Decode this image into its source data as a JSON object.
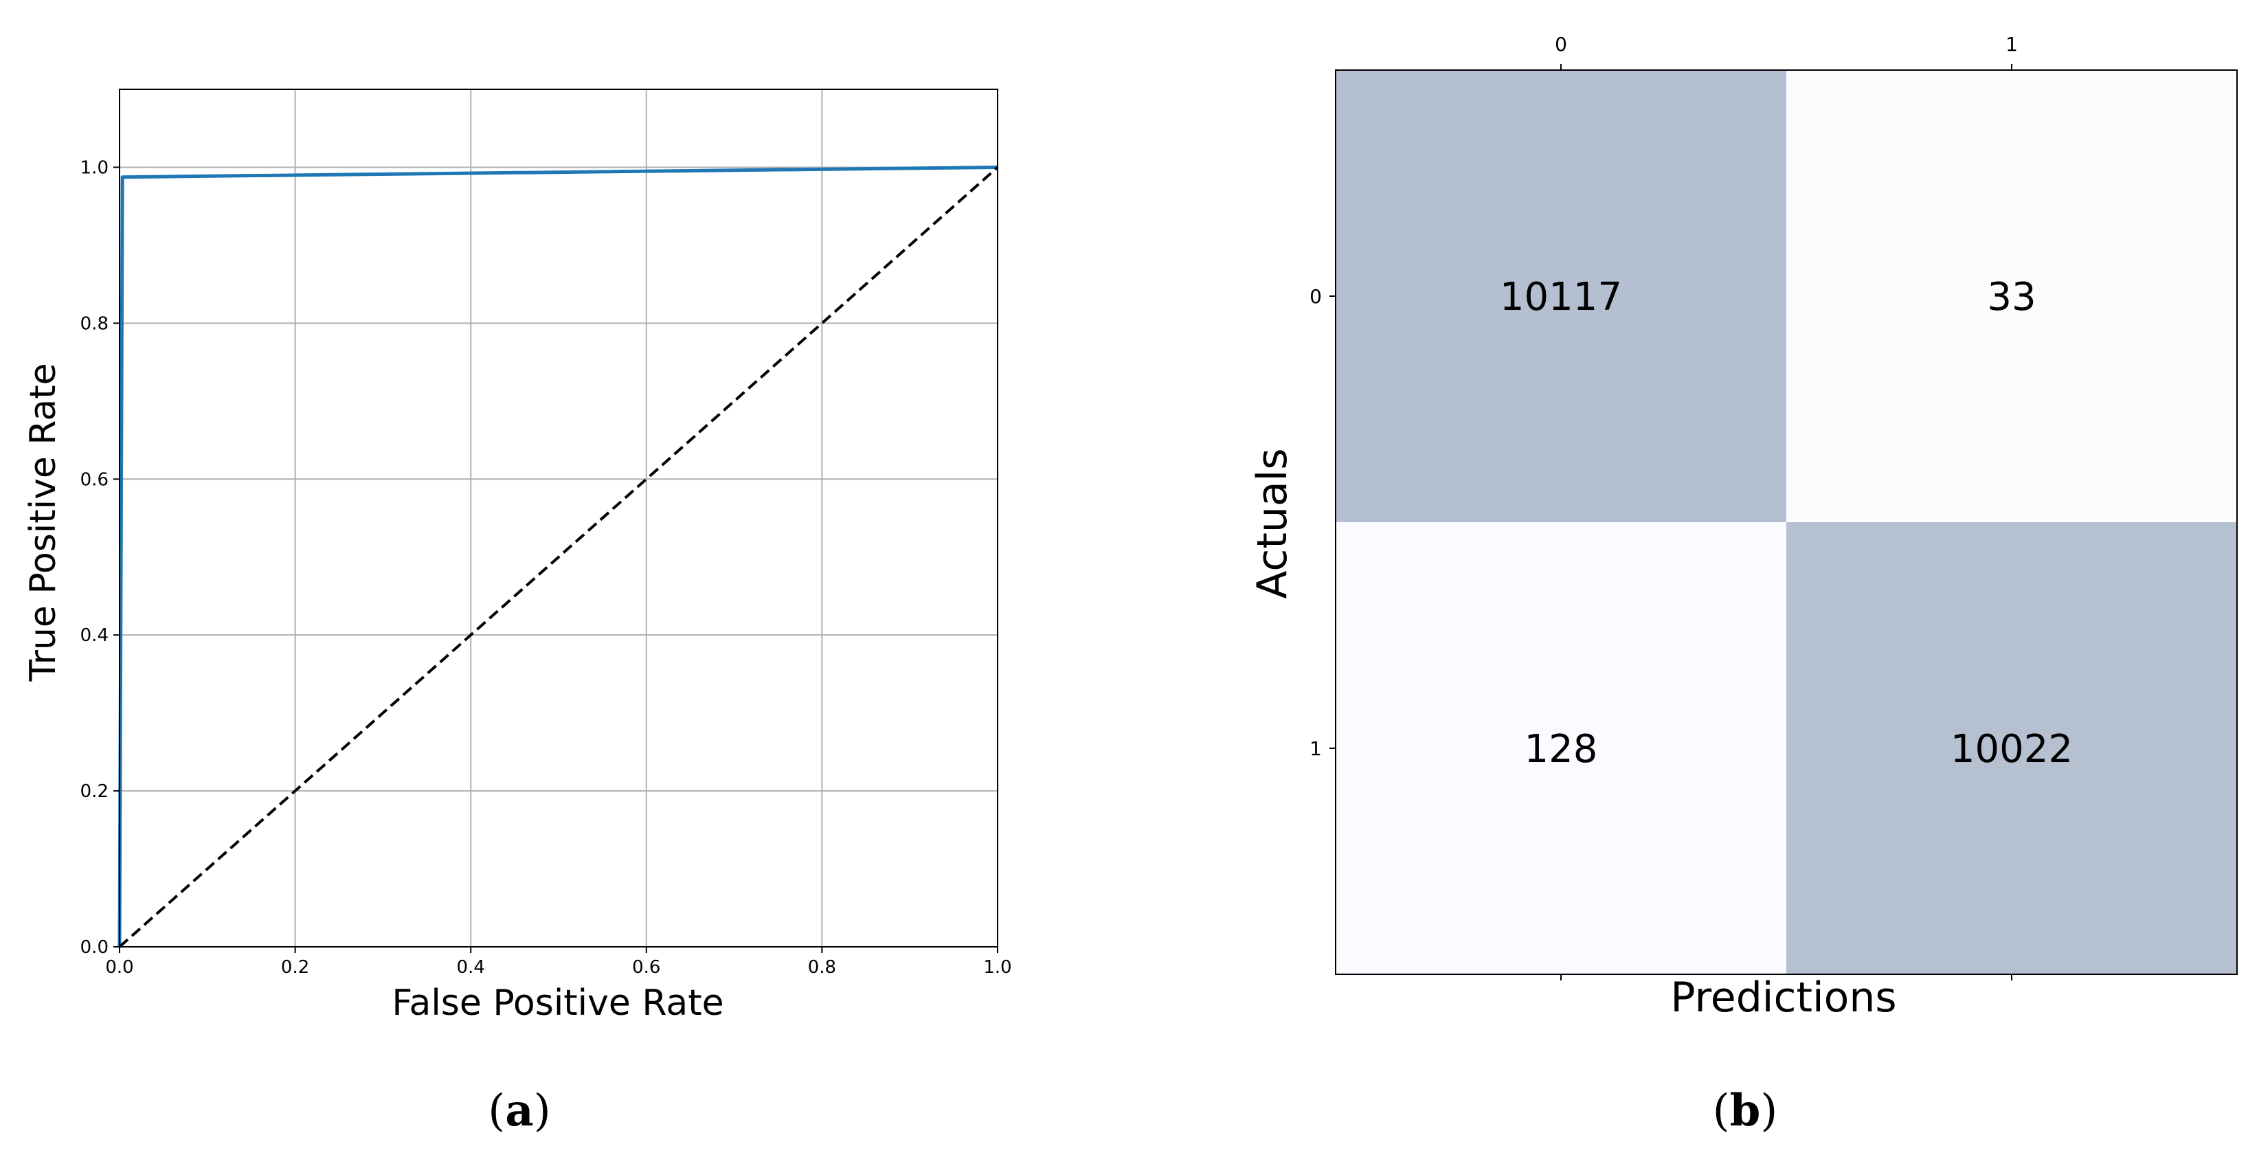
{
  "charts": [
    {
      "id": "a",
      "caption_letter": "a",
      "chart_data": {
        "type": "line",
        "xlabel": "False Positive Rate",
        "ylabel": "True Positive Rate",
        "xlim": [
          0.0,
          1.0
        ],
        "ylim": [
          0.0,
          1.1
        ],
        "x_ticks": [
          0.0,
          0.2,
          0.4,
          0.6,
          0.8,
          1.0
        ],
        "y_ticks": [
          0.0,
          0.2,
          0.4,
          0.6,
          0.8,
          1.0
        ],
        "x_tick_labels": [
          "0.0",
          "0.2",
          "0.4",
          "0.6",
          "0.8",
          "1.0"
        ],
        "y_tick_labels": [
          "0.0",
          "0.2",
          "0.4",
          "0.6",
          "0.8",
          "1.0"
        ],
        "grid": true,
        "series": [
          {
            "style": "solid",
            "color": "#1f77b4",
            "x": [
              0.0,
              0.0033,
              0.0033,
              1.0
            ],
            "y": [
              0.0,
              0.9874,
              0.9874,
              1.0
            ]
          },
          {
            "style": "dashed",
            "color": "#000000",
            "x": [
              0.0,
              1.0
            ],
            "y": [
              0.0,
              1.0
            ]
          }
        ]
      }
    },
    {
      "id": "b",
      "caption_letter": "b",
      "chart_data": {
        "type": "heatmap",
        "xlabel": "Predictions",
        "ylabel": "Actuals",
        "x_categories": [
          "0",
          "1"
        ],
        "y_categories": [
          "0",
          "1"
        ],
        "values": [
          [
            10117,
            33
          ],
          [
            128,
            10022
          ]
        ],
        "value_labels": [
          [
            "10117",
            "33"
          ],
          [
            "128",
            "10022"
          ]
        ],
        "high_color": "#b4bfd1",
        "low_color": "#fbfcfe"
      }
    }
  ]
}
